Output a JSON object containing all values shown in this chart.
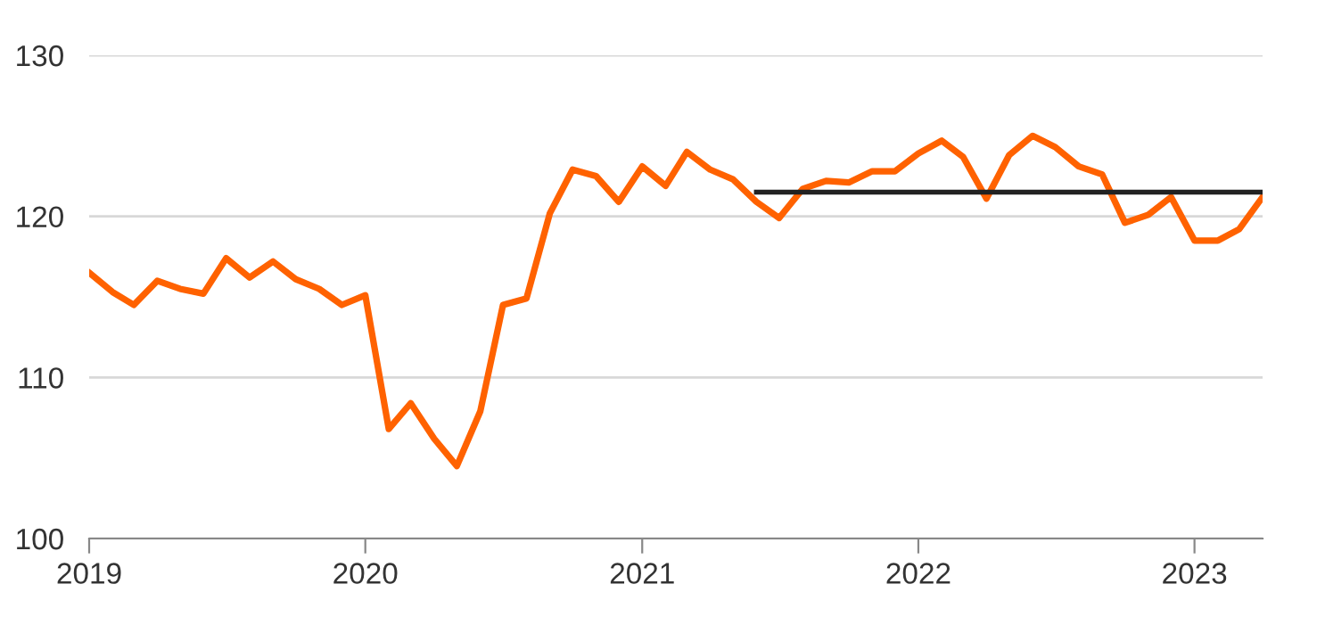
{
  "chart_data": {
    "type": "line",
    "x": [
      "2019-01",
      "2019-02",
      "2019-03",
      "2019-04",
      "2019-05",
      "2019-06",
      "2019-07",
      "2019-08",
      "2019-09",
      "2019-10",
      "2019-11",
      "2019-12",
      "2020-01",
      "2020-02",
      "2020-03",
      "2020-04",
      "2020-05",
      "2020-06",
      "2020-07",
      "2020-08",
      "2020-09",
      "2020-10",
      "2020-11",
      "2020-12",
      "2021-01",
      "2021-02",
      "2021-03",
      "2021-04",
      "2021-05",
      "2021-06",
      "2021-07",
      "2021-08",
      "2021-09",
      "2021-10",
      "2021-11",
      "2021-12",
      "2022-01",
      "2022-02",
      "2022-03",
      "2022-04",
      "2022-05",
      "2022-06",
      "2022-07",
      "2022-08",
      "2022-09",
      "2022-10",
      "2022-11",
      "2022-12",
      "2023-01",
      "2023-02",
      "2023-03",
      "2023-04"
    ],
    "series": [
      {
        "color": "#ff6200",
        "values": [
          116.5,
          115.3,
          114.5,
          116.0,
          115.5,
          115.2,
          117.4,
          116.2,
          117.2,
          116.1,
          115.5,
          114.5,
          115.1,
          106.8,
          108.4,
          106.2,
          104.5,
          107.9,
          114.5,
          114.9,
          120.2,
          122.9,
          122.5,
          120.9,
          123.1,
          121.9,
          124.0,
          122.9,
          122.3,
          120.9,
          119.9,
          121.7,
          122.2,
          122.1,
          122.8,
          122.8,
          123.9,
          124.7,
          123.7,
          121.1,
          123.8,
          125.0,
          124.3,
          123.1,
          122.6,
          119.6,
          120.1,
          121.2,
          118.5,
          118.5,
          119.2,
          121.2
        ]
      },
      {
        "color": "#222222",
        "x": [
          "2021-06",
          "2023-04"
        ],
        "values": [
          121.5,
          121.5
        ]
      }
    ],
    "xlim": [
      "2019-01",
      "2023-04"
    ],
    "xticks": [
      {
        "value": "2019",
        "label": "2019"
      },
      {
        "value": "2020",
        "label": "2020"
      },
      {
        "value": "2021",
        "label": "2021"
      },
      {
        "value": "2022",
        "label": "2022"
      },
      {
        "value": "2023",
        "label": "2023"
      }
    ],
    "ylim": [
      100,
      130
    ],
    "yticks": [
      100,
      110,
      120,
      130
    ],
    "grid": "y",
    "marker": "none",
    "line_style": "solid"
  }
}
